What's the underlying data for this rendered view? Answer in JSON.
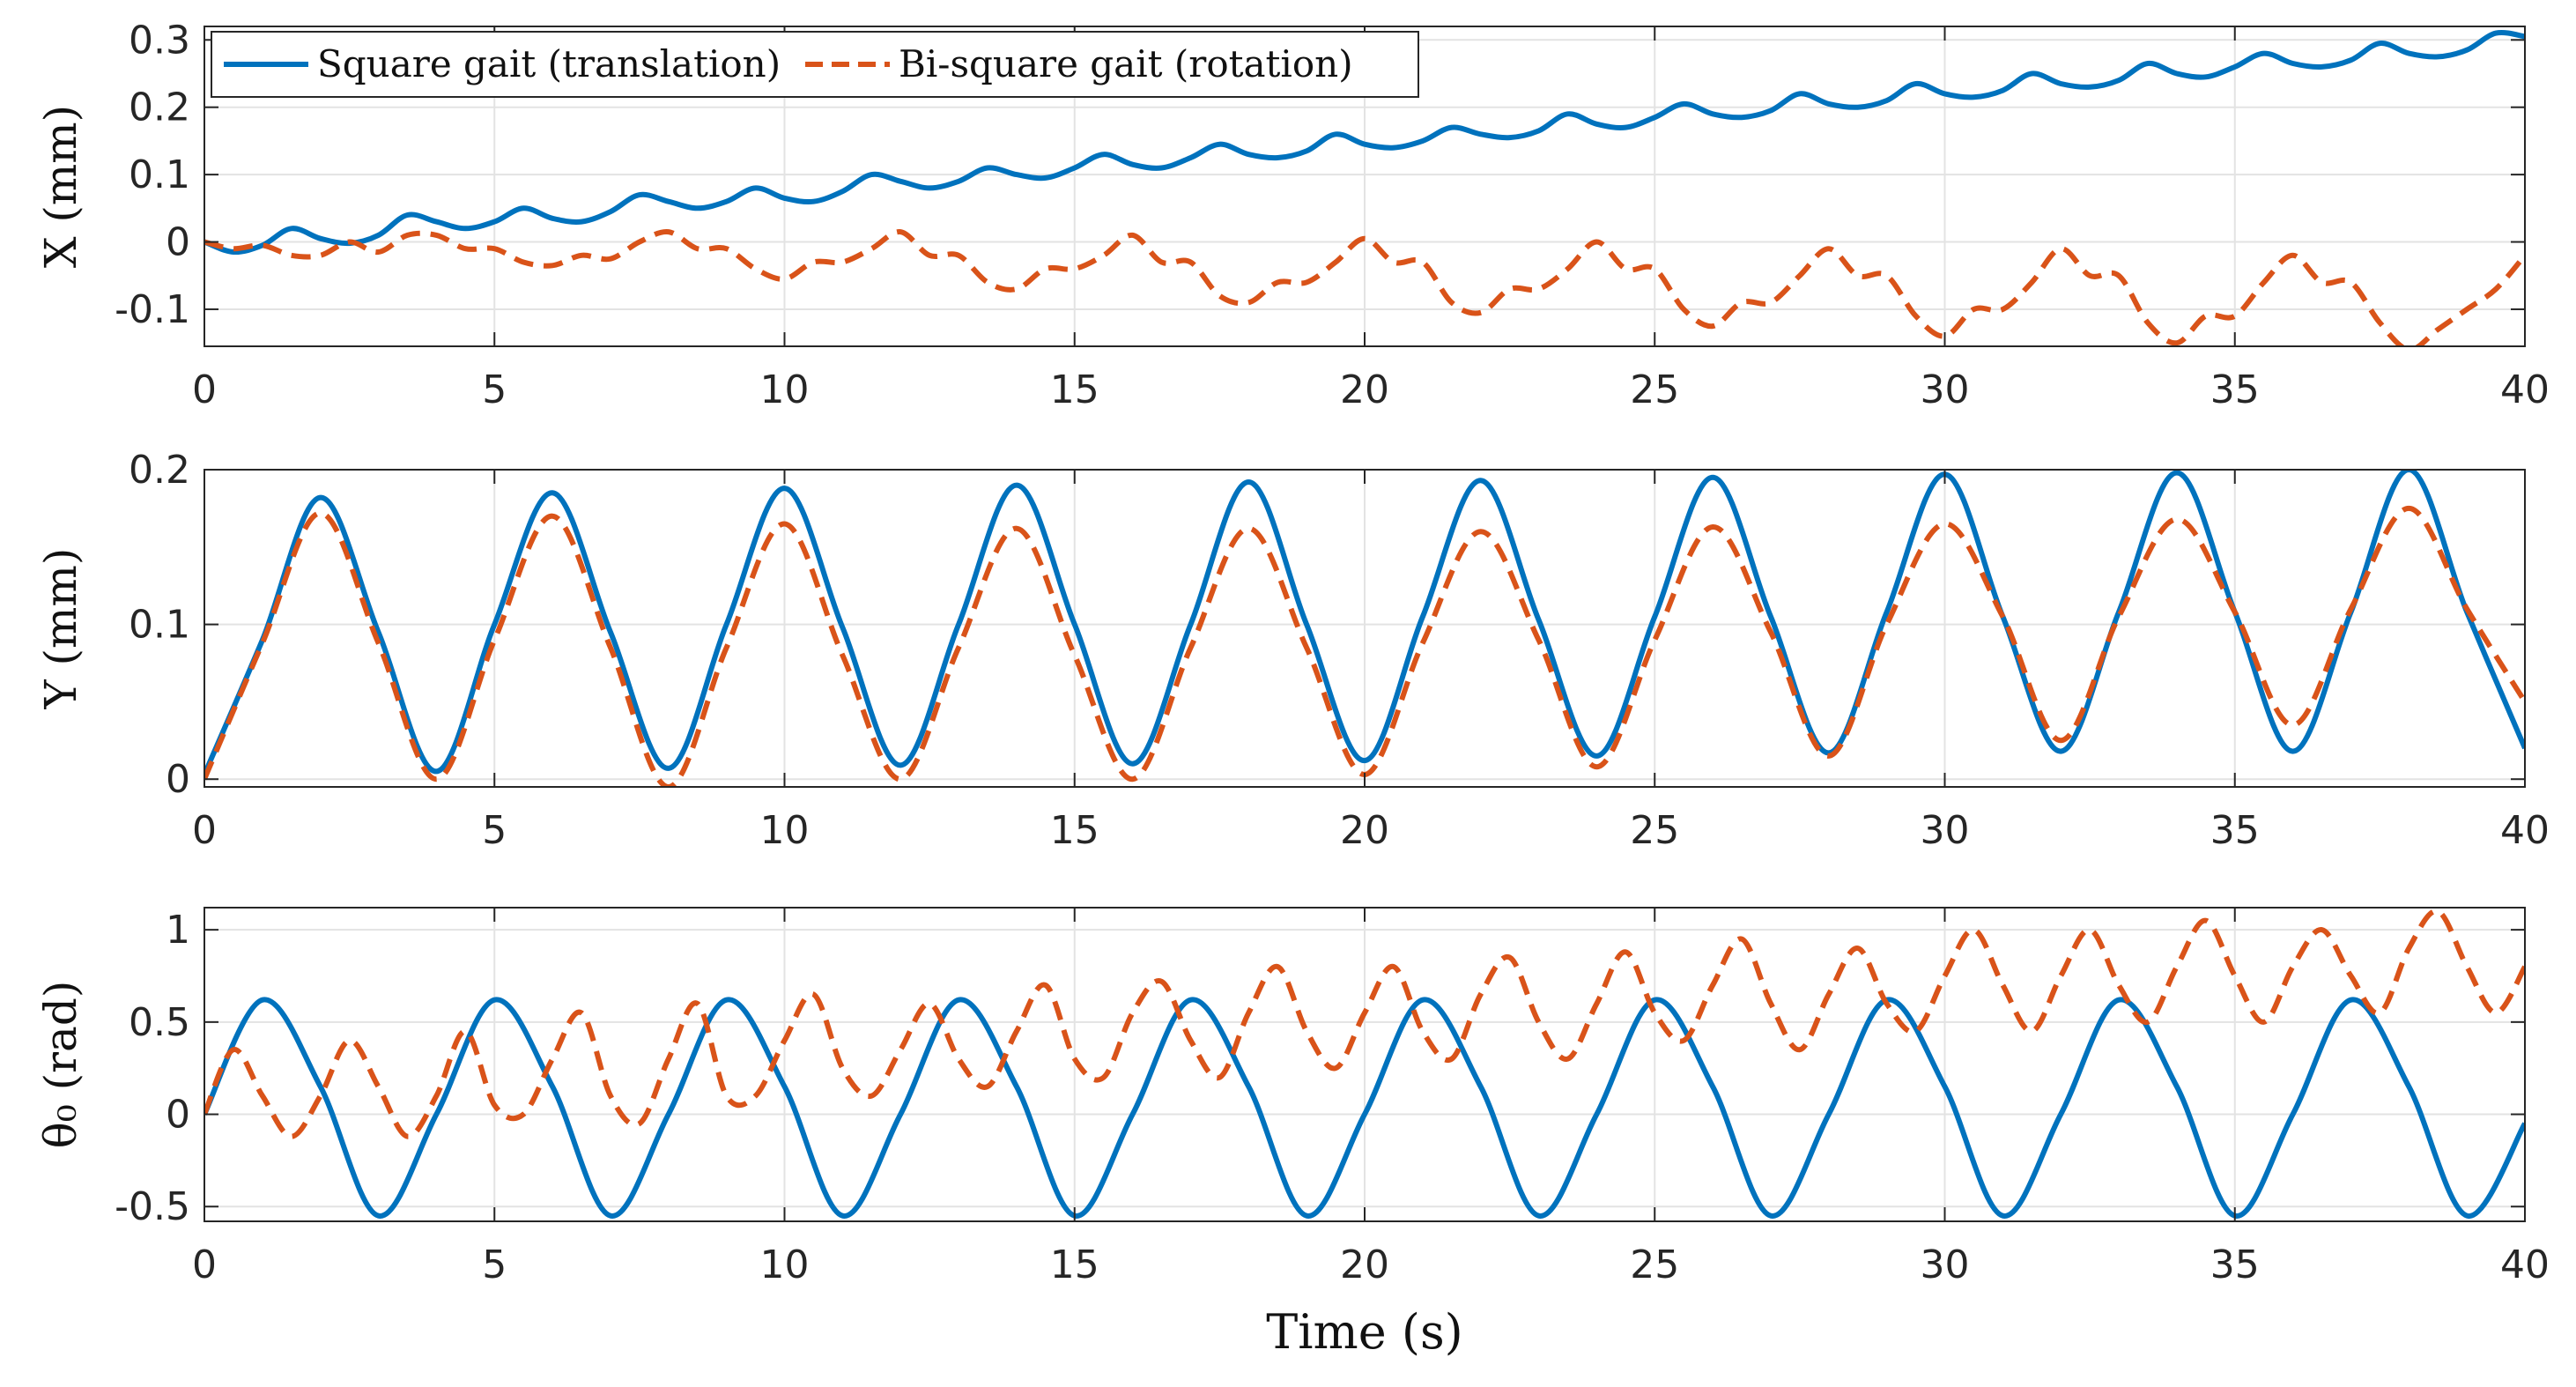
{
  "chart_data": [
    {
      "type": "line",
      "ylabel": "X (mm)",
      "xlabel": "",
      "xlim": [
        0,
        40
      ],
      "ylim": [
        -0.155,
        0.32
      ],
      "xticks": [
        "0",
        "5",
        "10",
        "15",
        "20",
        "25",
        "30",
        "35",
        "40"
      ],
      "yticks": [
        {
          "v": 0.3,
          "label": "0.3"
        },
        {
          "v": 0.2,
          "label": "0.2"
        },
        {
          "v": 0.1,
          "label": "0.1"
        },
        {
          "v": 0.0,
          "label": "0"
        },
        {
          "v": -0.1,
          "label": "-0.1"
        }
      ],
      "grid": true,
      "legend": {
        "position": "top-left",
        "entries": [
          "Square gait (translation)",
          "Bi-square gait (rotation)"
        ]
      },
      "series": [
        {
          "name": "Square gait (translation)",
          "color": "#0072BD",
          "style": "solid",
          "x": [
            0,
            0.5,
            1,
            1.5,
            2,
            2.5,
            3,
            3.5,
            4,
            4.5,
            5,
            5.5,
            6,
            6.5,
            7,
            7.5,
            8,
            8.5,
            9,
            9.5,
            10,
            10.5,
            11,
            11.5,
            12,
            12.5,
            13,
            13.5,
            14,
            14.5,
            15,
            15.5,
            16,
            16.5,
            17,
            17.5,
            18,
            18.5,
            19,
            19.5,
            20,
            20.5,
            21,
            21.5,
            22,
            22.5,
            23,
            23.5,
            24,
            24.5,
            25,
            25.5,
            26,
            26.5,
            27,
            27.5,
            28,
            28.5,
            29,
            29.5,
            30,
            30.5,
            31,
            31.5,
            32,
            32.5,
            33,
            33.5,
            34,
            34.5,
            35,
            35.5,
            36,
            36.5,
            37,
            37.5,
            38,
            38.5,
            39,
            39.5,
            40
          ],
          "values": [
            0,
            -0.015,
            -0.005,
            0.02,
            0.005,
            -0.002,
            0.01,
            0.04,
            0.03,
            0.02,
            0.03,
            0.05,
            0.035,
            0.03,
            0.045,
            0.07,
            0.06,
            0.05,
            0.06,
            0.08,
            0.065,
            0.06,
            0.075,
            0.1,
            0.09,
            0.08,
            0.09,
            0.11,
            0.1,
            0.095,
            0.11,
            0.13,
            0.115,
            0.11,
            0.125,
            0.145,
            0.13,
            0.125,
            0.135,
            0.16,
            0.145,
            0.14,
            0.15,
            0.17,
            0.16,
            0.155,
            0.165,
            0.19,
            0.175,
            0.17,
            0.185,
            0.205,
            0.19,
            0.185,
            0.195,
            0.22,
            0.205,
            0.2,
            0.21,
            0.235,
            0.22,
            0.215,
            0.225,
            0.25,
            0.235,
            0.23,
            0.24,
            0.265,
            0.25,
            0.245,
            0.26,
            0.28,
            0.265,
            0.26,
            0.27,
            0.295,
            0.28,
            0.275,
            0.285,
            0.31,
            0.305
          ]
        },
        {
          "name": "Bi-square gait (rotation)",
          "color": "#D95319",
          "style": "dashed",
          "x": [
            0,
            0.5,
            1,
            1.5,
            2,
            2.5,
            3,
            3.5,
            4,
            4.5,
            5,
            5.5,
            6,
            6.5,
            7,
            7.5,
            8,
            8.5,
            9,
            9.5,
            10,
            10.5,
            11,
            11.5,
            12,
            12.5,
            13,
            13.5,
            14,
            14.5,
            15,
            15.5,
            16,
            16.5,
            17,
            17.5,
            18,
            18.5,
            19,
            19.5,
            20,
            20.5,
            21,
            21.5,
            22,
            22.5,
            23,
            23.5,
            24,
            24.5,
            25,
            25.5,
            26,
            26.5,
            27,
            27.5,
            28,
            28.5,
            29,
            29.5,
            30,
            30.5,
            31,
            31.5,
            32,
            32.5,
            33,
            33.5,
            34,
            34.5,
            35,
            35.5,
            36,
            36.5,
            37,
            37.5,
            38,
            38.5,
            39,
            39.5,
            40
          ],
          "values": [
            0,
            -0.01,
            -0.005,
            -0.02,
            -0.02,
            0.0,
            -0.015,
            0.01,
            0.01,
            -0.01,
            -0.01,
            -0.03,
            -0.035,
            -0.02,
            -0.025,
            0.0,
            0.015,
            -0.01,
            -0.01,
            -0.04,
            -0.055,
            -0.03,
            -0.03,
            -0.01,
            0.015,
            -0.02,
            -0.02,
            -0.06,
            -0.07,
            -0.04,
            -0.04,
            -0.02,
            0.01,
            -0.03,
            -0.03,
            -0.08,
            -0.09,
            -0.06,
            -0.06,
            -0.03,
            0.005,
            -0.03,
            -0.03,
            -0.09,
            -0.105,
            -0.07,
            -0.07,
            -0.04,
            0.0,
            -0.04,
            -0.04,
            -0.1,
            -0.125,
            -0.09,
            -0.09,
            -0.05,
            -0.01,
            -0.05,
            -0.05,
            -0.11,
            -0.14,
            -0.1,
            -0.1,
            -0.06,
            -0.01,
            -0.05,
            -0.05,
            -0.12,
            -0.15,
            -0.11,
            -0.11,
            -0.06,
            -0.02,
            -0.06,
            -0.06,
            -0.12,
            -0.16,
            -0.13,
            -0.1,
            -0.07,
            -0.02
          ]
        }
      ]
    },
    {
      "type": "line",
      "ylabel": "Y (mm)",
      "xlabel": "",
      "xlim": [
        0,
        40
      ],
      "ylim": [
        -0.005,
        0.2
      ],
      "xticks": [
        "0",
        "5",
        "10",
        "15",
        "20",
        "25",
        "30",
        "35",
        "40"
      ],
      "yticks": [
        {
          "v": 0.2,
          "label": "0.2"
        },
        {
          "v": 0.1,
          "label": "0.1"
        },
        {
          "v": 0.0,
          "label": "0"
        }
      ],
      "grid": true,
      "series": [
        {
          "name": "Square gait (translation)",
          "color": "#0072BD",
          "style": "solid",
          "x": [
            0,
            1,
            2,
            3,
            4,
            5,
            6,
            7,
            8,
            9,
            10,
            11,
            12,
            13,
            14,
            15,
            16,
            17,
            18,
            19,
            20,
            21,
            22,
            23,
            24,
            25,
            26,
            27,
            28,
            29,
            30,
            31,
            32,
            33,
            34,
            35,
            36,
            37,
            38,
            39,
            40
          ],
          "values": [
            0.003,
            0.09,
            0.182,
            0.095,
            0.005,
            0.1,
            0.185,
            0.095,
            0.007,
            0.1,
            0.188,
            0.098,
            0.009,
            0.1,
            0.19,
            0.1,
            0.01,
            0.1,
            0.192,
            0.1,
            0.012,
            0.105,
            0.193,
            0.103,
            0.015,
            0.105,
            0.195,
            0.105,
            0.017,
            0.108,
            0.197,
            0.105,
            0.018,
            0.108,
            0.198,
            0.108,
            0.018,
            0.108,
            0.2,
            0.108,
            0.02
          ]
        },
        {
          "name": "Bi-square gait (rotation)",
          "color": "#D95319",
          "style": "dashed",
          "x": [
            0,
            1,
            2,
            3,
            4,
            5,
            6,
            7,
            8,
            9,
            10,
            11,
            12,
            13,
            14,
            15,
            16,
            17,
            18,
            19,
            20,
            21,
            22,
            23,
            24,
            25,
            26,
            27,
            28,
            29,
            30,
            31,
            32,
            33,
            34,
            35,
            36,
            37,
            38,
            39,
            40
          ],
          "values": [
            0.0,
            0.088,
            0.172,
            0.088,
            0.0,
            0.09,
            0.17,
            0.085,
            -0.005,
            0.085,
            0.165,
            0.08,
            0.0,
            0.085,
            0.162,
            0.08,
            0.0,
            0.085,
            0.162,
            0.085,
            0.003,
            0.088,
            0.16,
            0.09,
            0.008,
            0.09,
            0.163,
            0.095,
            0.015,
            0.1,
            0.165,
            0.105,
            0.025,
            0.105,
            0.168,
            0.108,
            0.035,
            0.11,
            0.175,
            0.11,
            0.05
          ]
        }
      ]
    },
    {
      "type": "line",
      "ylabel": "θ₀ (rad)",
      "xlabel": "Time (s)",
      "xlim": [
        0,
        40
      ],
      "ylim": [
        -0.58,
        1.12
      ],
      "xticks": [
        "0",
        "5",
        "10",
        "15",
        "20",
        "25",
        "30",
        "35",
        "40"
      ],
      "yticks": [
        {
          "v": 1.0,
          "label": "1"
        },
        {
          "v": 0.5,
          "label": "0.5"
        },
        {
          "v": 0.0,
          "label": "0"
        },
        {
          "v": -0.5,
          "label": "-0.5"
        }
      ],
      "grid": true,
      "series": [
        {
          "name": "Square gait (translation)",
          "color": "#0072BD",
          "style": "solid",
          "x": [
            0,
            1,
            2,
            3,
            4,
            5,
            6,
            7,
            8,
            9,
            10,
            11,
            12,
            13,
            14,
            15,
            16,
            17,
            18,
            19,
            20,
            21,
            22,
            23,
            24,
            25,
            26,
            27,
            28,
            29,
            30,
            31,
            32,
            33,
            34,
            35,
            36,
            37,
            38,
            39,
            40
          ],
          "values": [
            0,
            0.62,
            0.15,
            -0.55,
            0,
            0.62,
            0.15,
            -0.55,
            0,
            0.62,
            0.15,
            -0.55,
            0,
            0.62,
            0.15,
            -0.55,
            0,
            0.62,
            0.15,
            -0.55,
            0,
            0.62,
            0.15,
            -0.55,
            0,
            0.62,
            0.15,
            -0.55,
            0,
            0.62,
            0.15,
            -0.55,
            0,
            0.62,
            0.15,
            -0.55,
            0,
            0.62,
            0.15,
            -0.55,
            -0.05
          ]
        },
        {
          "name": "Bi-square gait (rotation)",
          "color": "#D95319",
          "style": "dashed",
          "x": [
            0,
            0.5,
            1,
            1.5,
            2,
            2.5,
            3,
            3.5,
            4,
            4.5,
            5,
            5.5,
            6,
            6.5,
            7,
            7.5,
            8,
            8.5,
            9,
            9.5,
            10,
            10.5,
            11,
            11.5,
            12,
            12.5,
            13,
            13.5,
            14,
            14.5,
            15,
            15.5,
            16,
            16.5,
            17,
            17.5,
            18,
            18.5,
            19,
            19.5,
            20,
            20.5,
            21,
            21.5,
            22,
            22.5,
            23,
            23.5,
            24,
            24.5,
            25,
            25.5,
            26,
            26.5,
            27,
            27.5,
            28,
            28.5,
            29,
            29.5,
            30,
            30.5,
            31,
            31.5,
            32,
            32.5,
            33,
            33.5,
            34,
            34.5,
            35,
            35.5,
            36,
            36.5,
            37,
            37.5,
            38,
            38.5,
            39,
            39.5,
            40
          ],
          "values": [
            0,
            0.35,
            0.1,
            -0.12,
            0.1,
            0.4,
            0.15,
            -0.12,
            0.1,
            0.45,
            0.05,
            0.0,
            0.3,
            0.55,
            0.1,
            -0.05,
            0.3,
            0.6,
            0.1,
            0.1,
            0.4,
            0.65,
            0.25,
            0.1,
            0.35,
            0.6,
            0.3,
            0.15,
            0.45,
            0.7,
            0.3,
            0.2,
            0.55,
            0.72,
            0.4,
            0.2,
            0.55,
            0.8,
            0.45,
            0.25,
            0.55,
            0.8,
            0.45,
            0.3,
            0.65,
            0.85,
            0.5,
            0.3,
            0.6,
            0.88,
            0.55,
            0.4,
            0.7,
            0.95,
            0.6,
            0.35,
            0.65,
            0.9,
            0.6,
            0.45,
            0.75,
            1.0,
            0.7,
            0.45,
            0.75,
            1.0,
            0.7,
            0.5,
            0.8,
            1.05,
            0.75,
            0.5,
            0.8,
            1.0,
            0.75,
            0.55,
            0.9,
            1.1,
            0.8,
            0.55,
            0.8
          ]
        }
      ]
    }
  ]
}
